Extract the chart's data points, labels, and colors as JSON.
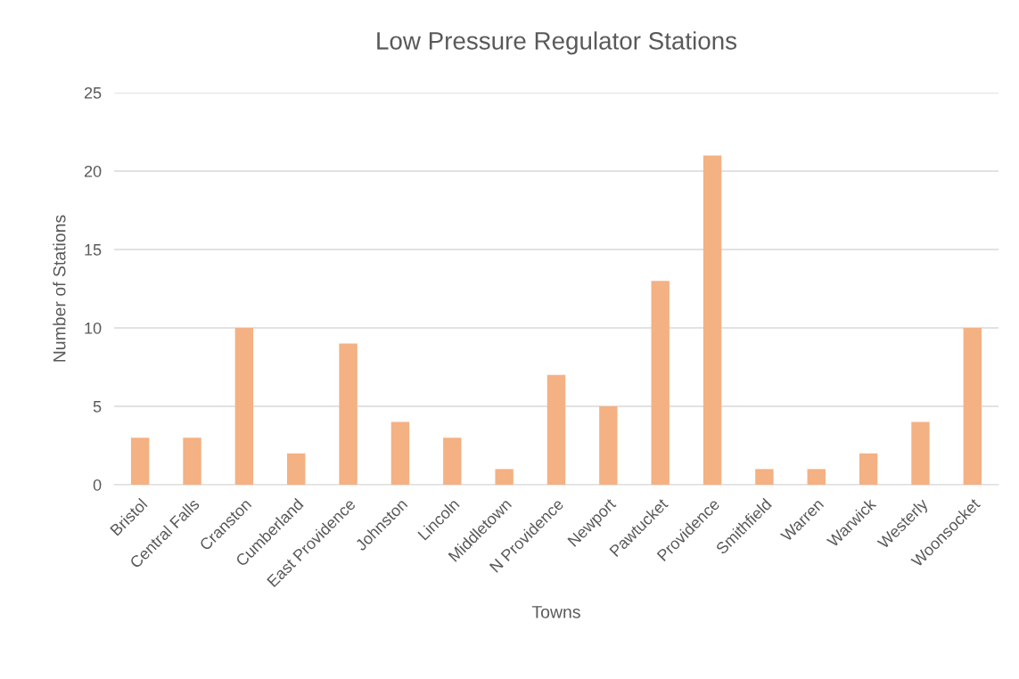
{
  "chart_data": {
    "type": "bar",
    "title": "Low Pressure Regulator Stations",
    "xlabel": "Towns",
    "ylabel": "Number of Stations",
    "categories": [
      "Bristol",
      "Central Falls",
      "Cranston",
      "Cumberland",
      "East Providence",
      "Johnston",
      "Lincoln",
      "Middletown",
      "N Providence",
      "Newport",
      "Pawtucket",
      "Providence",
      "Smithfield",
      "Warren",
      "Warwick",
      "Westerly",
      "Woonsocket"
    ],
    "values": [
      3,
      3,
      10,
      2,
      9,
      4,
      3,
      1,
      7,
      5,
      13,
      21,
      1,
      1,
      2,
      4,
      10
    ],
    "color": "#f4b183",
    "ylim": [
      0,
      25
    ],
    "yticks": [
      0,
      5,
      10,
      15,
      20,
      25
    ],
    "grid": "y"
  }
}
